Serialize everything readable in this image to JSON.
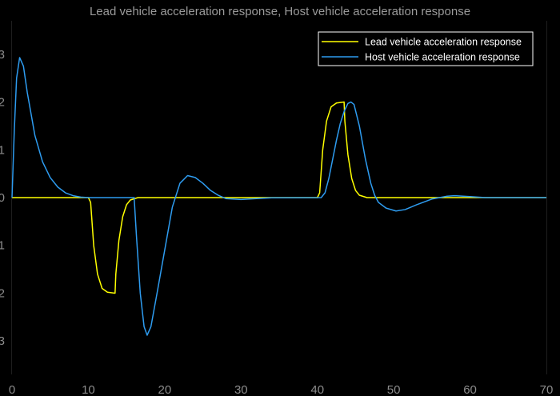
{
  "colors": {
    "background": "#000000",
    "grid": "#3c3c3c",
    "axis_text": "#8c8c8c",
    "lead": "#ffff00",
    "host": "#2e9cf0"
  },
  "chart_data": {
    "type": "line",
    "title": "Lead vehicle acceleration response, Host vehicle acceleration response",
    "xlabel": "",
    "ylabel": "",
    "xlim": [
      0,
      70
    ],
    "ylim": [
      -3.7,
      3.7
    ],
    "xticks": [
      0,
      10,
      20,
      30,
      40,
      50,
      60,
      70
    ],
    "yticks": [
      -3,
      -2,
      -1,
      0,
      1,
      2,
      3
    ],
    "xtick_labels": [
      "0",
      "10",
      "20",
      "30",
      "40",
      "50",
      "60",
      "70"
    ],
    "ytick_labels": [
      "3",
      "2",
      "1",
      "0",
      "1",
      "2",
      "3"
    ],
    "grid": true,
    "legend_position": "top-right",
    "series": [
      {
        "name": "Lead vehicle acceleration response",
        "color": "#ffff00",
        "points": [
          [
            0,
            0
          ],
          [
            10,
            0
          ],
          [
            10.3,
            -0.1
          ],
          [
            10.7,
            -1.0
          ],
          [
            11.2,
            -1.6
          ],
          [
            11.8,
            -1.9
          ],
          [
            12.5,
            -1.98
          ],
          [
            13.5,
            -2.0
          ],
          [
            13.6,
            -1.6
          ],
          [
            14.0,
            -0.9
          ],
          [
            14.5,
            -0.4
          ],
          [
            15.0,
            -0.15
          ],
          [
            15.5,
            -0.05
          ],
          [
            16.5,
            0
          ],
          [
            40,
            0
          ],
          [
            40.3,
            0.1
          ],
          [
            40.7,
            1.0
          ],
          [
            41.2,
            1.6
          ],
          [
            41.8,
            1.9
          ],
          [
            42.5,
            1.98
          ],
          [
            43.5,
            2.0
          ],
          [
            43.6,
            1.6
          ],
          [
            44.0,
            0.9
          ],
          [
            44.5,
            0.4
          ],
          [
            45.0,
            0.15
          ],
          [
            45.5,
            0.05
          ],
          [
            46.5,
            0
          ],
          [
            70,
            0
          ]
        ]
      },
      {
        "name": "Host vehicle acceleration response",
        "color": "#2e9cf0",
        "points": [
          [
            0,
            0
          ],
          [
            0.3,
            1.4
          ],
          [
            0.6,
            2.5
          ],
          [
            1.0,
            2.93
          ],
          [
            1.5,
            2.75
          ],
          [
            2.0,
            2.2
          ],
          [
            3.0,
            1.3
          ],
          [
            4.0,
            0.75
          ],
          [
            5.0,
            0.42
          ],
          [
            6.0,
            0.22
          ],
          [
            7.0,
            0.1
          ],
          [
            8.0,
            0.04
          ],
          [
            9.0,
            0.01
          ],
          [
            10.0,
            0
          ],
          [
            16.0,
            0
          ],
          [
            16.3,
            -0.8
          ],
          [
            16.8,
            -2.0
          ],
          [
            17.3,
            -2.7
          ],
          [
            17.7,
            -2.88
          ],
          [
            18.2,
            -2.7
          ],
          [
            19.0,
            -2.0
          ],
          [
            20.0,
            -1.1
          ],
          [
            21.0,
            -0.2
          ],
          [
            22.0,
            0.3
          ],
          [
            23.0,
            0.46
          ],
          [
            24.0,
            0.42
          ],
          [
            25.0,
            0.3
          ],
          [
            26.0,
            0.15
          ],
          [
            27.0,
            0.05
          ],
          [
            28.0,
            -0.02
          ],
          [
            30.0,
            -0.04
          ],
          [
            32.0,
            -0.02
          ],
          [
            34.0,
            -0.005
          ],
          [
            40.5,
            0
          ],
          [
            41.0,
            0.1
          ],
          [
            41.5,
            0.4
          ],
          [
            42.0,
            0.8
          ],
          [
            42.5,
            1.2
          ],
          [
            43.0,
            1.55
          ],
          [
            43.5,
            1.8
          ],
          [
            44.0,
            1.97
          ],
          [
            44.4,
            2.0
          ],
          [
            44.8,
            1.95
          ],
          [
            45.5,
            1.5
          ],
          [
            46.3,
            0.8
          ],
          [
            47.0,
            0.3
          ],
          [
            47.5,
            0.05
          ],
          [
            48.0,
            -0.1
          ],
          [
            49.0,
            -0.22
          ],
          [
            50.3,
            -0.28
          ],
          [
            51.5,
            -0.25
          ],
          [
            53.0,
            -0.15
          ],
          [
            55.0,
            -0.03
          ],
          [
            57.0,
            0.03
          ],
          [
            58.0,
            0.04
          ],
          [
            60.0,
            0.02
          ],
          [
            62.0,
            0.0
          ],
          [
            70,
            0
          ]
        ]
      }
    ]
  }
}
